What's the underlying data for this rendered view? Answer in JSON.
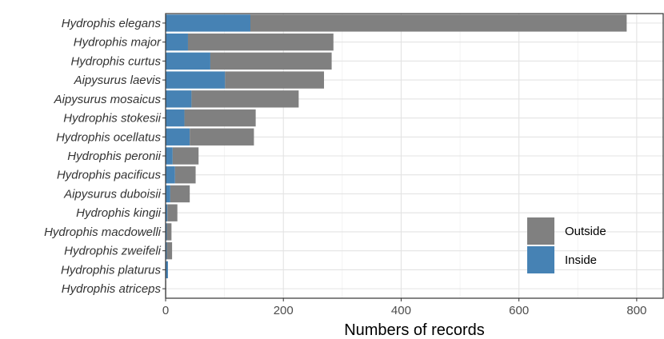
{
  "chart_data": {
    "type": "bar",
    "orientation": "horizontal",
    "stacked": true,
    "categories": [
      "Hydrophis elegans",
      "Hydrophis major",
      "Hydrophis curtus",
      "Aipysurus laevis",
      "Aipysurus mosaicus",
      "Hydrophis stokesii",
      "Hydrophis ocellatus",
      "Hydrophis peronii",
      "Hydrophis pacificus",
      "Aipysurus duboisii",
      "Hydrophis kingii",
      "Hydrophis macdowelli",
      "Hydrophis zweifeli",
      "Hydrophis platurus",
      "Hydrophis atriceps"
    ],
    "series": [
      {
        "name": "Inside",
        "color": "#4682B4",
        "values": [
          144,
          38,
          76,
          101,
          44,
          32,
          41,
          12,
          16,
          8,
          3,
          2,
          2,
          4,
          0
        ]
      },
      {
        "name": "Outside",
        "color": "#808080",
        "values": [
          639,
          247,
          206,
          168,
          182,
          121,
          109,
          44,
          35,
          33,
          17,
          8,
          9,
          0,
          1
        ]
      }
    ],
    "xlabel": "Numbers of records",
    "ylabel": "",
    "xlim": [
      0,
      845
    ],
    "xticks": [
      0,
      200,
      400,
      600,
      800
    ],
    "grid": true,
    "legend": {
      "position": "bottom-right",
      "entries": [
        "Outside",
        "Inside"
      ]
    }
  }
}
